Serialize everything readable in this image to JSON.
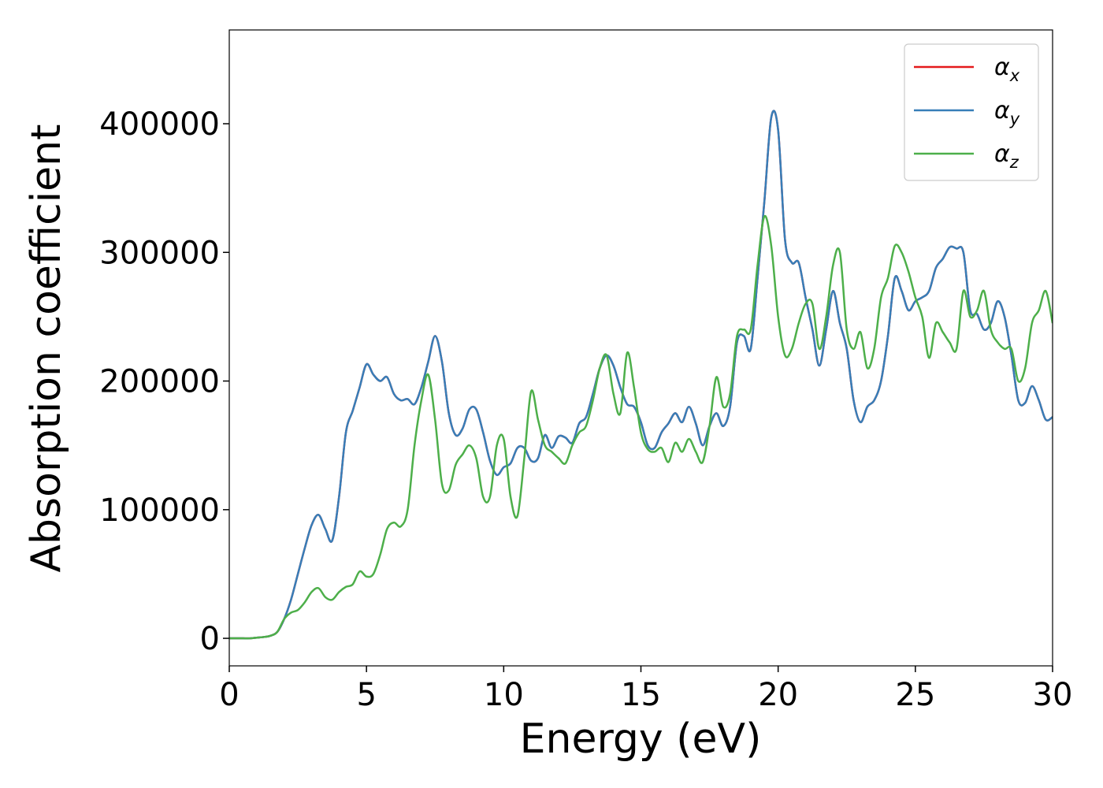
{
  "chart_data": {
    "type": "line",
    "xlabel": "Energy (eV)",
    "ylabel": "Absorption coefficient",
    "xlim": [
      0,
      30
    ],
    "ylim": [
      -21400,
      472900
    ],
    "xticks": [
      0,
      5,
      10,
      15,
      20,
      25,
      30
    ],
    "yticks": [
      0,
      100000,
      200000,
      300000,
      400000
    ],
    "legend": "upper right",
    "x": [
      0,
      0.25,
      0.5,
      0.75,
      1,
      1.25,
      1.5,
      1.75,
      2,
      2.25,
      2.5,
      2.75,
      3,
      3.25,
      3.5,
      3.75,
      4,
      4.25,
      4.5,
      4.75,
      5,
      5.25,
      5.5,
      5.75,
      6,
      6.25,
      6.5,
      6.75,
      7,
      7.25,
      7.5,
      7.75,
      8,
      8.25,
      8.5,
      8.75,
      9,
      9.25,
      9.5,
      9.75,
      10,
      10.25,
      10.5,
      10.75,
      11,
      11.25,
      11.5,
      11.75,
      12,
      12.25,
      12.5,
      12.75,
      13,
      13.25,
      13.5,
      13.75,
      14,
      14.25,
      14.5,
      14.75,
      15,
      15.25,
      15.5,
      15.75,
      16,
      16.25,
      16.5,
      16.75,
      17,
      17.25,
      17.5,
      17.75,
      18,
      18.25,
      18.5,
      18.75,
      19,
      19.25,
      19.5,
      19.75,
      20,
      20.25,
      20.5,
      20.75,
      21,
      21.25,
      21.5,
      21.75,
      22,
      22.25,
      22.5,
      22.75,
      23,
      23.25,
      23.5,
      23.75,
      24,
      24.25,
      24.5,
      24.75,
      25,
      25.25,
      25.5,
      25.75,
      26,
      26.25,
      26.5,
      26.75,
      27,
      27.25,
      27.5,
      27.75,
      28,
      28.25,
      28.5,
      28.75,
      29,
      29.25,
      29.5,
      29.75,
      30
    ],
    "series": [
      {
        "name": "αx",
        "color": "#e41a1c",
        "values": [
          0,
          0,
          0,
          0,
          500,
          1000,
          2000,
          5000,
          15000,
          30000,
          50000,
          70000,
          88000,
          96000,
          85000,
          76000,
          110000,
          160000,
          177000,
          195000,
          213000,
          205000,
          200000,
          203000,
          190000,
          185000,
          186000,
          182000,
          195000,
          215000,
          235000,
          215000,
          175000,
          158000,
          163000,
          178000,
          178000,
          160000,
          138000,
          127000,
          133000,
          136000,
          148000,
          148000,
          138000,
          140000,
          158000,
          148000,
          157000,
          156000,
          152000,
          167000,
          172000,
          190000,
          210000,
          220000,
          212000,
          195000,
          182000,
          180000,
          168000,
          150000,
          148000,
          160000,
          167000,
          175000,
          168000,
          180000,
          167000,
          150000,
          165000,
          175000,
          165000,
          180000,
          230000,
          235000,
          225000,
          280000,
          340000,
          405000,
          395000,
          310000,
          292000,
          292000,
          265000,
          240000,
          212000,
          240000,
          270000,
          245000,
          225000,
          185000,
          168000,
          180000,
          185000,
          200000,
          235000,
          280000,
          270000,
          255000,
          262000,
          265000,
          270000,
          288000,
          295000,
          304000,
          303000,
          300000,
          255000,
          252000,
          240000,
          245000,
          262000,
          250000,
          220000,
          185000,
          183000,
          196000,
          185000,
          170000,
          172000
        ]
      },
      {
        "name": "αy",
        "color": "#377eb8",
        "values": [
          0,
          0,
          0,
          0,
          500,
          1000,
          2000,
          5000,
          15000,
          30000,
          50000,
          70000,
          88000,
          96000,
          85000,
          76000,
          110000,
          160000,
          177000,
          195000,
          213000,
          205000,
          200000,
          203000,
          190000,
          185000,
          186000,
          182000,
          195000,
          215000,
          235000,
          215000,
          175000,
          158000,
          163000,
          178000,
          178000,
          160000,
          138000,
          127000,
          133000,
          136000,
          148000,
          148000,
          138000,
          140000,
          158000,
          148000,
          157000,
          156000,
          152000,
          167000,
          172000,
          190000,
          210000,
          220000,
          212000,
          195000,
          182000,
          180000,
          168000,
          150000,
          148000,
          160000,
          167000,
          175000,
          168000,
          180000,
          167000,
          150000,
          165000,
          175000,
          165000,
          180000,
          230000,
          235000,
          225000,
          280000,
          340000,
          405000,
          395000,
          310000,
          292000,
          292000,
          265000,
          240000,
          212000,
          240000,
          270000,
          245000,
          225000,
          185000,
          168000,
          180000,
          185000,
          200000,
          235000,
          280000,
          270000,
          255000,
          262000,
          265000,
          270000,
          288000,
          295000,
          304000,
          303000,
          300000,
          255000,
          252000,
          240000,
          245000,
          262000,
          250000,
          220000,
          185000,
          183000,
          196000,
          185000,
          170000,
          172000
        ]
      },
      {
        "name": "αz",
        "color": "#4daf4a",
        "values": [
          0,
          0,
          0,
          0,
          500,
          1000,
          2000,
          5000,
          15000,
          20000,
          22000,
          28000,
          36000,
          39000,
          32000,
          30000,
          36000,
          40000,
          42000,
          52000,
          48000,
          50000,
          65000,
          85000,
          90000,
          87000,
          100000,
          150000,
          185000,
          205000,
          170000,
          120000,
          115000,
          135000,
          143000,
          150000,
          140000,
          110000,
          110000,
          150000,
          155000,
          110000,
          95000,
          140000,
          192000,
          170000,
          150000,
          145000,
          140000,
          136000,
          150000,
          160000,
          165000,
          185000,
          210000,
          220000,
          190000,
          175000,
          222000,
          195000,
          160000,
          147000,
          145000,
          148000,
          137000,
          152000,
          145000,
          155000,
          145000,
          137000,
          165000,
          203000,
          180000,
          190000,
          235000,
          240000,
          240000,
          290000,
          328000,
          305000,
          250000,
          220000,
          225000,
          245000,
          260000,
          260000,
          225000,
          250000,
          290000,
          300000,
          240000,
          225000,
          238000,
          210000,
          225000,
          265000,
          280000,
          305000,
          300000,
          285000,
          265000,
          250000,
          218000,
          245000,
          238000,
          230000,
          225000,
          270000,
          250000,
          255000,
          270000,
          240000,
          230000,
          225000,
          225000,
          200000,
          210000,
          245000,
          255000,
          270000,
          245000
        ]
      }
    ]
  }
}
